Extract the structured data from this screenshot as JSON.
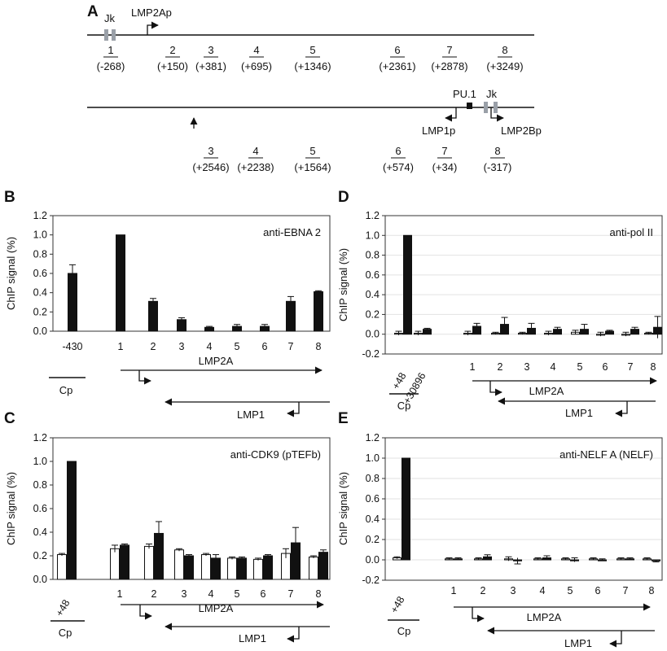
{
  "panel_a": {
    "letter": "A",
    "top_track": {
      "jk_label": "Jk",
      "promoter_label": "LMP2Ap",
      "amplicons": [
        {
          "n": "1",
          "pos": "(-268)"
        },
        {
          "n": "2",
          "pos": "(+150)"
        },
        {
          "n": "3",
          "pos": "(+381)"
        },
        {
          "n": "4",
          "pos": "(+695)"
        },
        {
          "n": "5",
          "pos": "(+1346)"
        },
        {
          "n": "6",
          "pos": "(+2361)"
        },
        {
          "n": "7",
          "pos": "(+2878)"
        },
        {
          "n": "8",
          "pos": "(+3249)"
        }
      ]
    },
    "bottom_track": {
      "pu1_label": "PU.1",
      "jk_label": "Jk",
      "lmp1p_label": "LMP1p",
      "lmp2bp_label": "LMP2Bp",
      "amplicons": [
        {
          "n": "3",
          "pos": "(+2546)"
        },
        {
          "n": "4",
          "pos": "(+2238)"
        },
        {
          "n": "5",
          "pos": "(+1564)"
        },
        {
          "n": "6",
          "pos": "(+574)"
        },
        {
          "n": "7",
          "pos": "(+34)"
        },
        {
          "n": "8",
          "pos": "(-317)"
        }
      ]
    }
  },
  "colors": {
    "black_bar": "#111111",
    "white_bar": "#ffffff",
    "gray_box": "#9aa0a8"
  },
  "chart_data": [
    {
      "panel": "B",
      "type": "bar",
      "annotation": "anti-EBNA 2",
      "ylabel": "ChIP signal (%)",
      "ylim": [
        0,
        1.2
      ],
      "yticks": [
        "0.0",
        "0.2",
        "0.4",
        "0.6",
        "0.8",
        "1.0",
        "1.2"
      ],
      "grid": false,
      "categories": [
        "-430",
        "1",
        "2",
        "3",
        "4",
        "5",
        "6",
        "7",
        "8"
      ],
      "series": [
        {
          "color": "black",
          "values": [
            0.6,
            1.0,
            0.31,
            0.12,
            0.04,
            0.05,
            0.05,
            0.31,
            0.41
          ],
          "errors": [
            0.09,
            0,
            0.03,
            0.02,
            0.01,
            0.02,
            0.02,
            0.05,
            0.01
          ]
        }
      ],
      "control_label": "Cp",
      "gene_labels": {
        "lmp2a": "LMP2A",
        "lmp1": "LMP1"
      }
    },
    {
      "panel": "C",
      "type": "bar",
      "annotation": "anti-CDK9 (pTEFb)",
      "ylabel": "ChIP signal (%)",
      "ylim": [
        0,
        1.2
      ],
      "yticks": [
        "0.0",
        "0.2",
        "0.4",
        "0.6",
        "0.8",
        "1.0",
        "1.2"
      ],
      "grid": false,
      "categories": [
        "+48",
        "1",
        "2",
        "3",
        "4",
        "5",
        "6",
        "7",
        "8"
      ],
      "series": [
        {
          "color": "white",
          "values": [
            0.21,
            0.26,
            0.28,
            0.25,
            0.21,
            0.18,
            0.17,
            0.22,
            0.19
          ],
          "errors": [
            0.01,
            0.03,
            0.02,
            0.01,
            0.01,
            0.01,
            0.01,
            0.04,
            0.01
          ]
        },
        {
          "color": "black",
          "values": [
            1.0,
            0.29,
            0.39,
            0.2,
            0.18,
            0.18,
            0.2,
            0.31,
            0.23
          ],
          "errors": [
            0,
            0.01,
            0.1,
            0.01,
            0.03,
            0.01,
            0.01,
            0.13,
            0.02
          ]
        }
      ],
      "control_label": "Cp",
      "gene_labels": {
        "lmp2a": "LMP2A",
        "lmp1": "LMP1"
      }
    },
    {
      "panel": "D",
      "type": "bar",
      "annotation": "anti-pol II",
      "ylabel": "ChIP signal (%)",
      "ylim": [
        -0.2,
        1.2
      ],
      "yticks": [
        "-0.2",
        "0.0",
        "0.2",
        "0.4",
        "0.6",
        "0.8",
        "1.0",
        "1.2"
      ],
      "grid": true,
      "categories": [
        "+48",
        "+30896",
        "1",
        "2",
        "3",
        "4",
        "5",
        "6",
        "7",
        "8"
      ],
      "series": [
        {
          "color": "white",
          "values": [
            0.01,
            0.01,
            0.01,
            0.01,
            0.01,
            0.01,
            0.02,
            0.0,
            0.0,
            0.01
          ],
          "errors": [
            0.02,
            0.02,
            0.02,
            0.01,
            0.01,
            0.02,
            0.02,
            0.02,
            0.02,
            0.01
          ]
        },
        {
          "color": "black",
          "values": [
            1.0,
            0.05,
            0.08,
            0.1,
            0.06,
            0.05,
            0.05,
            0.03,
            0.05,
            0.07
          ],
          "errors": [
            0,
            0.01,
            0.03,
            0.07,
            0.05,
            0.02,
            0.05,
            0.01,
            0.02,
            0.11
          ]
        }
      ],
      "control_label": "Cp",
      "gene_labels": {
        "lmp2a": "LMP2A",
        "lmp1": "LMP1"
      }
    },
    {
      "panel": "E",
      "type": "bar",
      "annotation": "anti-NELF A (NELF)",
      "ylabel": "ChIP signal (%)",
      "ylim": [
        -0.2,
        1.2
      ],
      "yticks": [
        "-0.2",
        "0.0",
        "0.2",
        "0.4",
        "0.6",
        "0.8",
        "1.0",
        "1.2"
      ],
      "grid": true,
      "categories": [
        "+48",
        "1",
        "2",
        "3",
        "4",
        "5",
        "6",
        "7",
        "8"
      ],
      "series": [
        {
          "color": "white",
          "values": [
            0.02,
            0.01,
            0.01,
            0.01,
            0.01,
            0.01,
            0.01,
            0.01,
            0.01
          ],
          "errors": [
            0.01,
            0.01,
            0.01,
            0.02,
            0.01,
            0.01,
            0.01,
            0.01,
            0.01
          ]
        },
        {
          "color": "black",
          "values": [
            1.0,
            0.01,
            0.03,
            -0.01,
            0.02,
            0.0,
            0.0,
            0.01,
            -0.01
          ],
          "errors": [
            0,
            0.01,
            0.02,
            0.03,
            0.02,
            0.02,
            0.01,
            0.01,
            0.01
          ]
        }
      ],
      "control_label": "Cp",
      "gene_labels": {
        "lmp2a": "LMP2A",
        "lmp1": "LMP1"
      }
    }
  ]
}
